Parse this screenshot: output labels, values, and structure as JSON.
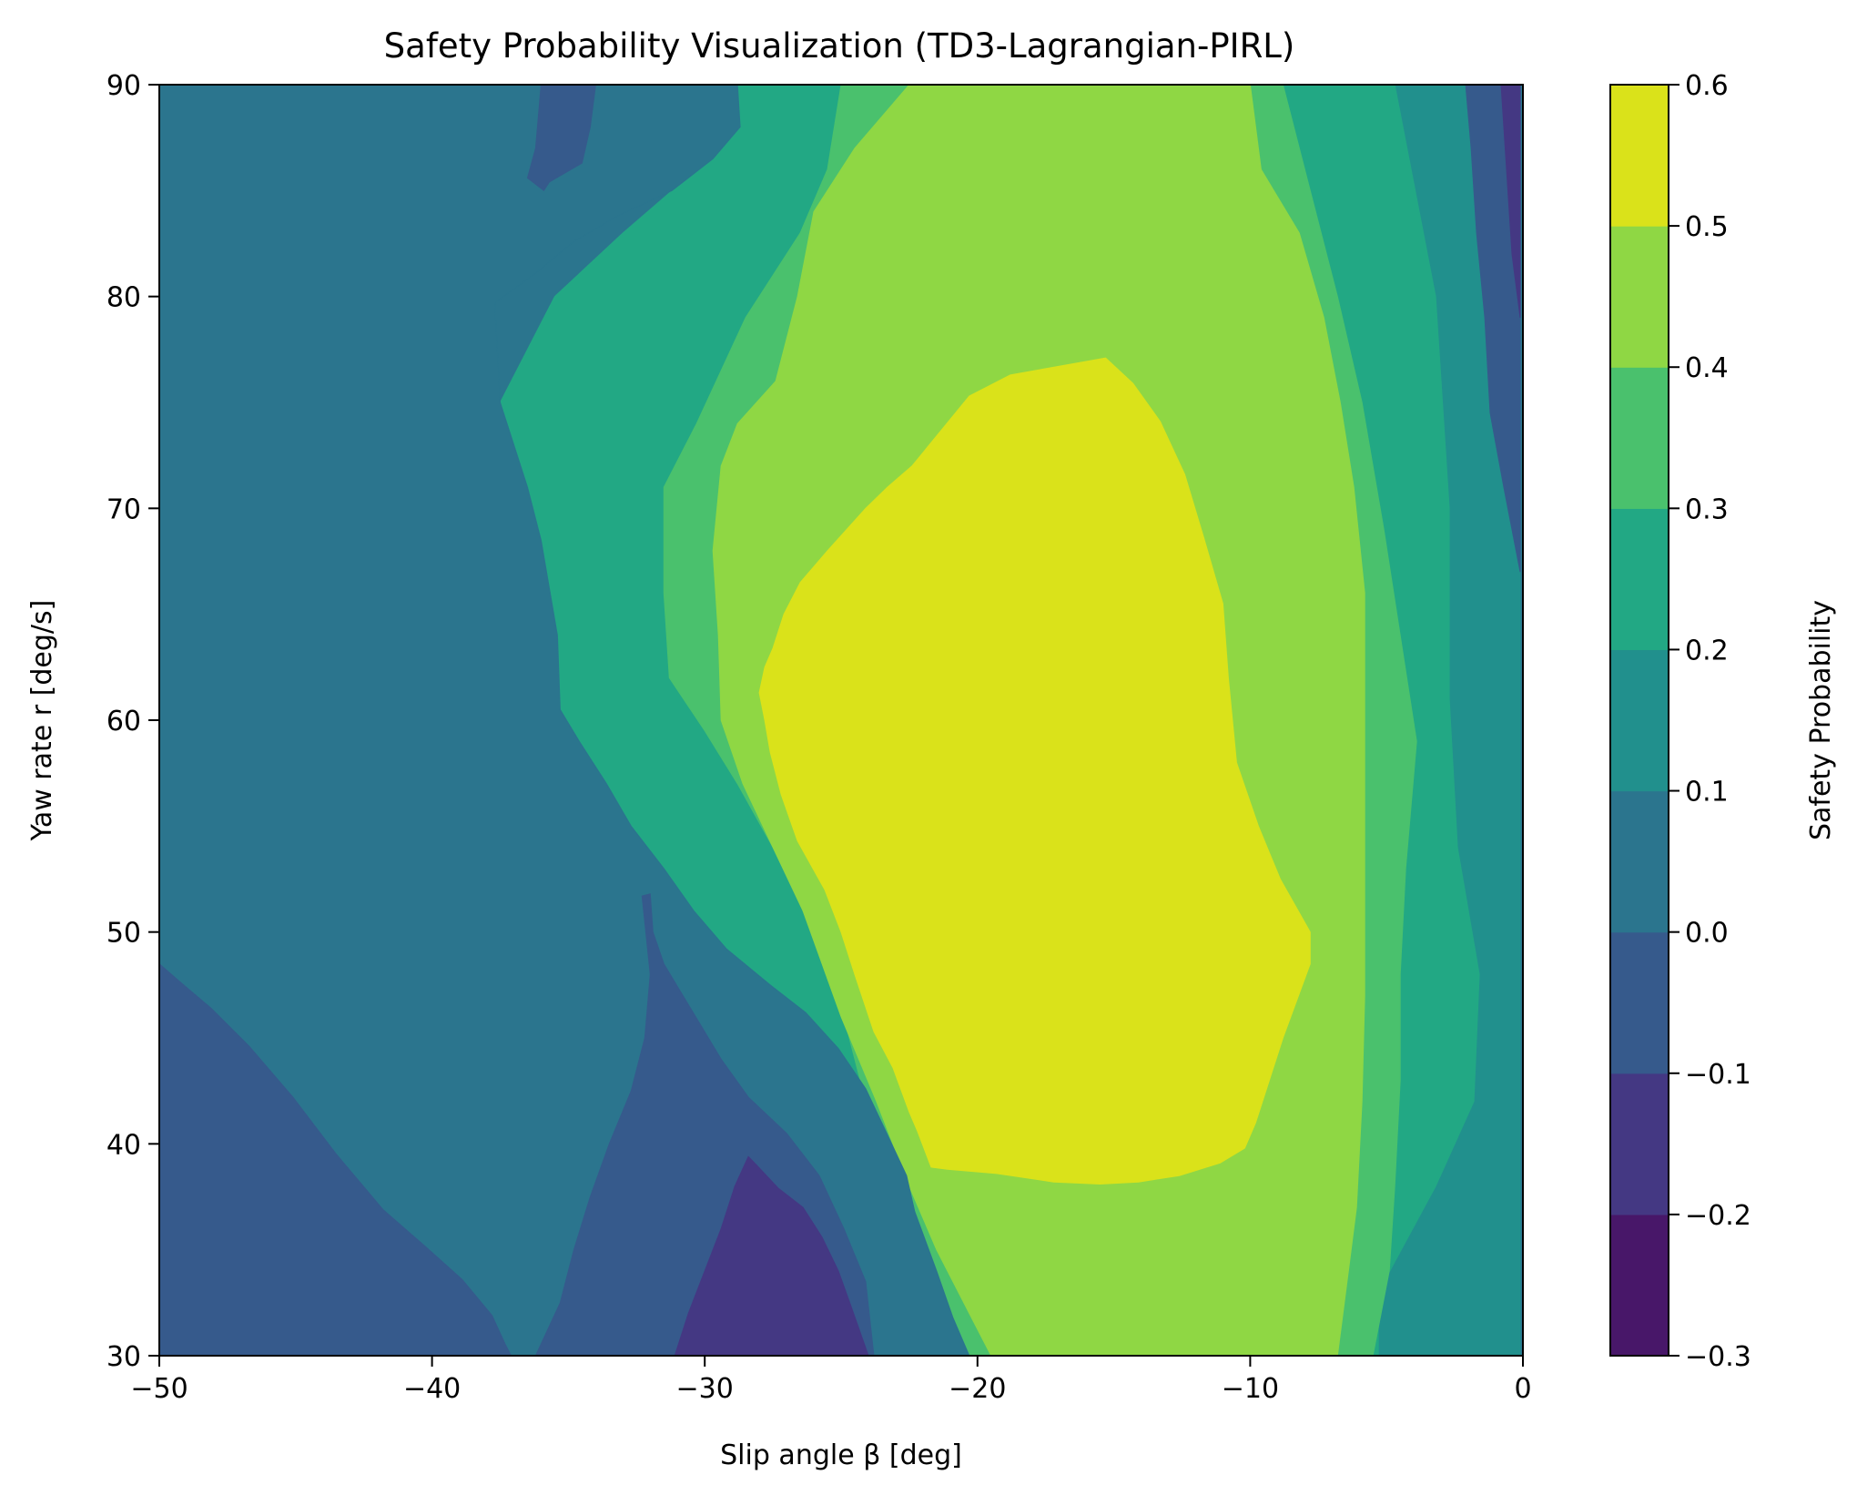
{
  "chart_data": {
    "type": "contourf",
    "title": "Safety Probability Visualization (TD3-Lagrangian-PIRL)",
    "xlabel": "Slip angle β [deg]",
    "ylabel": "Yaw rate r [deg/s]",
    "colorbar_label": "Safety Probability",
    "xlim": [
      -50,
      0
    ],
    "ylim": [
      30,
      90
    ],
    "x_ticks": [
      -50,
      -40,
      -30,
      -20,
      -10,
      0
    ],
    "x_tick_labels": [
      "−50",
      "−40",
      "−30",
      "−20",
      "−10",
      "0"
    ],
    "y_ticks": [
      30,
      40,
      50,
      60,
      70,
      80,
      90
    ],
    "y_tick_labels": [
      "30",
      "40",
      "50",
      "60",
      "70",
      "80",
      "90"
    ],
    "levels": [
      -0.3,
      -0.2,
      -0.1,
      0.0,
      0.1,
      0.2,
      0.3,
      0.4,
      0.5,
      0.6
    ],
    "level_labels": [
      "−0.3",
      "−0.2",
      "−0.1",
      "0.0",
      "0.1",
      "0.2",
      "0.3",
      "0.4",
      "0.5",
      "0.6"
    ],
    "level_colors": [
      "#481769",
      "#443883",
      "#365a8c",
      "#2b758e",
      "#21908d",
      "#22a884",
      "#4ac16d",
      "#8fd744",
      "#dae21a"
    ],
    "regions": [
      {
        "name": "band-0.1-0.2",
        "level_index": 4,
        "points": [
          [
            -29.6,
            90
          ],
          [
            -0.1,
            90
          ],
          [
            -0.1,
            30
          ],
          [
            -30,
            30
          ]
        ]
      },
      {
        "name": "band-0.2-0.3",
        "level_index": 5,
        "points": [
          [
            -27.5,
            90
          ],
          [
            -4.7,
            90
          ],
          [
            -3.2,
            80
          ],
          [
            -2.7,
            70
          ],
          [
            -2.7,
            61
          ],
          [
            -2.4,
            54
          ],
          [
            -1.6,
            48
          ],
          [
            -1.8,
            42
          ],
          [
            -3.2,
            38
          ],
          [
            -5.3,
            33
          ],
          [
            -5.3,
            30
          ],
          [
            -23.8,
            30
          ],
          [
            -24.5,
            33
          ],
          [
            -26.5,
            38
          ],
          [
            -28.3,
            42
          ],
          [
            -30.5,
            46
          ],
          [
            -33,
            51
          ],
          [
            -35.5,
            56
          ],
          [
            -37,
            60.5
          ],
          [
            -38,
            64
          ],
          [
            -38,
            70
          ],
          [
            -37.5,
            75
          ],
          [
            -35.5,
            80
          ],
          [
            -33,
            83
          ],
          [
            -30.3,
            86
          ],
          [
            -29.6,
            90
          ]
        ]
      },
      {
        "name": "band-0.3-0.4",
        "level_index": 6,
        "points": [
          [
            -25,
            90
          ],
          [
            -8.8,
            90
          ],
          [
            -7.8,
            85
          ],
          [
            -6.8,
            80
          ],
          [
            -5.9,
            75
          ],
          [
            -5.1,
            69
          ],
          [
            -4.5,
            64
          ],
          [
            -3.9,
            59
          ],
          [
            -4.3,
            53
          ],
          [
            -4.5,
            48
          ],
          [
            -4.5,
            43
          ],
          [
            -4.7,
            38
          ],
          [
            -4.9,
            34
          ],
          [
            -5.5,
            30
          ],
          [
            -21.3,
            30
          ],
          [
            -21.6,
            33
          ],
          [
            -22.4,
            36
          ],
          [
            -23.3,
            39
          ],
          [
            -24.3,
            43
          ],
          [
            -25.1,
            47
          ],
          [
            -26,
            50
          ],
          [
            -27.5,
            54
          ],
          [
            -28.8,
            57
          ],
          [
            -30,
            59.5
          ],
          [
            -31.3,
            62
          ],
          [
            -31.5,
            66
          ],
          [
            -31.5,
            71
          ],
          [
            -30.3,
            74
          ],
          [
            -28.5,
            79
          ],
          [
            -26.5,
            83
          ],
          [
            -25.5,
            86
          ],
          [
            -25,
            90
          ]
        ]
      },
      {
        "name": "band-0.4-0.5",
        "level_index": 7,
        "points": [
          [
            -22.5,
            90
          ],
          [
            -10,
            90
          ],
          [
            -9.6,
            86
          ],
          [
            -8.2,
            83
          ],
          [
            -7.3,
            79
          ],
          [
            -6.7,
            75
          ],
          [
            -6.2,
            71
          ],
          [
            -5.8,
            66
          ],
          [
            -5.8,
            62
          ],
          [
            -5.8,
            57
          ],
          [
            -5.8,
            52
          ],
          [
            -5.8,
            47
          ],
          [
            -5.9,
            42
          ],
          [
            -6.1,
            37
          ],
          [
            -6.4,
            34
          ],
          [
            -6.7,
            31
          ],
          [
            -6.8,
            30
          ],
          [
            -19.5,
            30
          ],
          [
            -20.3,
            32
          ],
          [
            -21.5,
            35
          ],
          [
            -22.5,
            38
          ],
          [
            -23.7,
            42
          ],
          [
            -25,
            46
          ],
          [
            -26.4,
            51
          ],
          [
            -27.5,
            54
          ],
          [
            -28.6,
            57
          ],
          [
            -29.4,
            60
          ],
          [
            -29.5,
            64
          ],
          [
            -29.7,
            68
          ],
          [
            -29.4,
            72
          ],
          [
            -28.8,
            74
          ],
          [
            -27.4,
            76
          ],
          [
            -26.6,
            80
          ],
          [
            -26,
            84
          ],
          [
            -24.5,
            87
          ],
          [
            -22.5,
            90
          ]
        ]
      },
      {
        "name": "band-0.5-0.6",
        "level_index": 8,
        "points": [
          [
            -22.4,
            72
          ],
          [
            -20.3,
            75.3
          ],
          [
            -18.8,
            76.3
          ],
          [
            -15.3,
            77.1
          ],
          [
            -14.3,
            75.9
          ],
          [
            -13.3,
            74.1
          ],
          [
            -12.4,
            71.6
          ],
          [
            -11.7,
            68.6
          ],
          [
            -11,
            65.5
          ],
          [
            -10.8,
            62
          ],
          [
            -10.5,
            58
          ],
          [
            -9.7,
            55
          ],
          [
            -8.9,
            52.5
          ],
          [
            -7.8,
            50
          ],
          [
            -7.8,
            48.5
          ],
          [
            -8.8,
            45
          ],
          [
            -9.8,
            41
          ],
          [
            -10.2,
            39.8
          ],
          [
            -11.1,
            39.1
          ],
          [
            -12.6,
            38.5
          ],
          [
            -14.1,
            38.2
          ],
          [
            -15.5,
            38.1
          ],
          [
            -17.2,
            38.2
          ],
          [
            -19.3,
            38.6
          ],
          [
            -21.1,
            38.8
          ],
          [
            -21.7,
            38.9
          ],
          [
            -22.2,
            40.6
          ],
          [
            -22.5,
            41.5
          ],
          [
            -23.1,
            43.6
          ],
          [
            -23.8,
            45.3
          ],
          [
            -24.5,
            48
          ],
          [
            -25,
            50
          ],
          [
            -25.6,
            52
          ],
          [
            -26.6,
            54.3
          ],
          [
            -27.2,
            56.5
          ],
          [
            -27.6,
            58.5
          ],
          [
            -27.8,
            60
          ],
          [
            -28,
            61.3
          ],
          [
            -27.8,
            62.5
          ],
          [
            -27.5,
            63.4
          ],
          [
            -27.1,
            65
          ],
          [
            -26.5,
            66.5
          ],
          [
            -25.5,
            68
          ],
          [
            -24.1,
            70
          ],
          [
            -23.3,
            71
          ],
          [
            -22.4,
            72
          ]
        ]
      },
      {
        "name": "band-0.0-0.1",
        "level_index": 3,
        "points": [
          [
            -50,
            90
          ],
          [
            -28.8,
            90
          ],
          [
            -28.7,
            88
          ],
          [
            -29.7,
            86.5
          ],
          [
            -31.2,
            85
          ],
          [
            -33.2,
            83.8
          ],
          [
            -34.8,
            82.6
          ],
          [
            -36.2,
            81.1
          ],
          [
            -37.7,
            79.7
          ],
          [
            -37.5,
            75
          ],
          [
            -36.5,
            71
          ],
          [
            -36,
            68.5
          ],
          [
            -35.4,
            64
          ],
          [
            -35.3,
            60.5
          ],
          [
            -34.6,
            59
          ],
          [
            -33.6,
            57
          ],
          [
            -32.7,
            55
          ],
          [
            -31.5,
            53
          ],
          [
            -30.4,
            51
          ],
          [
            -29.2,
            49.2
          ],
          [
            -27.6,
            47.5
          ],
          [
            -26.3,
            46.2
          ],
          [
            -25.1,
            44.5
          ],
          [
            -24.1,
            42.6
          ],
          [
            -23.4,
            40.7
          ],
          [
            -22.6,
            38.5
          ],
          [
            -22.3,
            36.8
          ],
          [
            -21.5,
            34
          ],
          [
            -20.9,
            31.8
          ],
          [
            -20.3,
            30
          ],
          [
            -50,
            30
          ]
        ]
      },
      {
        "name": "band-neg0.1-0.0-left",
        "level_index": 2,
        "points": [
          [
            -50,
            48.5
          ],
          [
            -49.2,
            47.6
          ],
          [
            -48.1,
            46.4
          ],
          [
            -46.7,
            44.6
          ],
          [
            -45.1,
            42.2
          ],
          [
            -43.5,
            39.5
          ],
          [
            -41.8,
            36.9
          ],
          [
            -40.2,
            35.1
          ],
          [
            -38.9,
            33.6
          ],
          [
            -37.8,
            31.9
          ],
          [
            -37.3,
            30.5
          ],
          [
            -37.1,
            30
          ],
          [
            -50,
            30
          ]
        ]
      },
      {
        "name": "band-neg0.1-0.0-mid",
        "level_index": 2,
        "points": [
          [
            -32.3,
            51.7
          ],
          [
            -32,
            51.8
          ],
          [
            -31.9,
            50
          ],
          [
            -31.5,
            48.5
          ],
          [
            -30.8,
            47
          ],
          [
            -30.1,
            45.5
          ],
          [
            -29.4,
            44
          ],
          [
            -28.4,
            42.2
          ],
          [
            -27,
            40.5
          ],
          [
            -25.8,
            38.5
          ],
          [
            -24.9,
            36
          ],
          [
            -24.1,
            33.5
          ],
          [
            -23.8,
            30
          ],
          [
            -36.2,
            30
          ],
          [
            -35.3,
            32.5
          ],
          [
            -34.8,
            35
          ],
          [
            -34.2,
            37.5
          ],
          [
            -33.5,
            40
          ],
          [
            -32.7,
            42.5
          ],
          [
            -32.2,
            45
          ],
          [
            -32,
            48
          ],
          [
            -32.3,
            51.7
          ]
        ]
      },
      {
        "name": "band-neg0.1-0.0-top",
        "level_index": 2,
        "points": [
          [
            -36,
            90
          ],
          [
            -34,
            90
          ],
          [
            -34.2,
            88
          ],
          [
            -34.5,
            86.3
          ],
          [
            -35.7,
            85.4
          ],
          [
            -35.9,
            85
          ],
          [
            -36.5,
            85.6
          ],
          [
            -36.2,
            87
          ],
          [
            -36,
            90
          ]
        ]
      },
      {
        "name": "band-neg0.1-0.0-right",
        "level_index": 2,
        "points": [
          [
            -2.1,
            90
          ],
          [
            -0.1,
            90
          ],
          [
            -0.1,
            67
          ],
          [
            -0.7,
            71
          ],
          [
            -1.2,
            74.5
          ],
          [
            -1.4,
            79
          ],
          [
            -1.7,
            83
          ],
          [
            -1.9,
            87
          ],
          [
            -2.1,
            90
          ]
        ]
      },
      {
        "name": "band-neg0.2-neg0.1",
        "level_index": 1,
        "points": [
          [
            -28.4,
            39.4
          ],
          [
            -28.1,
            39
          ],
          [
            -27.3,
            37.9
          ],
          [
            -26.4,
            37
          ],
          [
            -25.7,
            35.6
          ],
          [
            -25.1,
            34
          ],
          [
            -24.6,
            32.2
          ],
          [
            -24,
            30
          ],
          [
            -31.1,
            30
          ],
          [
            -30.6,
            32
          ],
          [
            -30,
            34
          ],
          [
            -29.4,
            36
          ],
          [
            -28.9,
            38
          ],
          [
            -28.4,
            39.4
          ]
        ]
      },
      {
        "name": "band-neg0.2-neg0.1-right",
        "level_index": 1,
        "points": [
          [
            -0.8,
            90
          ],
          [
            -0.1,
            90
          ],
          [
            -0.1,
            79
          ],
          [
            -0.4,
            82
          ],
          [
            -0.6,
            86
          ],
          [
            -0.8,
            90
          ]
        ]
      }
    ]
  }
}
